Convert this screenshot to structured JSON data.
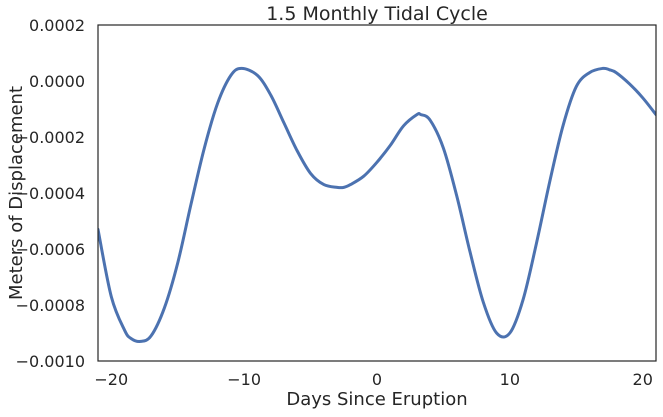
{
  "chart_data": {
    "type": "line",
    "title": "1.5 Monthly Tidal Cycle",
    "xlabel": "Days Since Eruption",
    "ylabel": "Meters of Displacement",
    "xlim": [
      -21,
      21
    ],
    "ylim": [
      -0.001,
      0.0002
    ],
    "x_ticks": [
      -20,
      -10,
      0,
      10,
      20
    ],
    "x_tick_labels": [
      "−20",
      "−10",
      "0",
      "10",
      "20"
    ],
    "y_ticks": [
      -0.001,
      -0.0008,
      -0.0006,
      -0.0004,
      -0.0002,
      0.0,
      0.0002
    ],
    "y_tick_labels": [
      "−0.0010",
      "−0.0008",
      "−0.0006",
      "−0.0004",
      "−0.0002",
      "0.0000",
      "0.0002"
    ],
    "grid": false,
    "line_color": "#4c72b0",
    "series": [
      {
        "x": [
          -21,
          -20,
          -19,
          -18.5,
          -17.8,
          -17,
          -16,
          -15,
          -14,
          -13,
          -12,
          -11,
          -10.2,
          -9,
          -8,
          -7,
          -6,
          -5,
          -4,
          -3,
          -2.5,
          -2,
          -1,
          0,
          1,
          2,
          3,
          3.3,
          4,
          5,
          6,
          7,
          8,
          9,
          10,
          11,
          12,
          13,
          14,
          15,
          16,
          17,
          17.5,
          18,
          19,
          20,
          21
        ],
        "y": [
          -0.00053,
          -0.00077,
          -0.00089,
          -0.00092,
          -0.00093,
          -0.00091,
          -0.00081,
          -0.00065,
          -0.00044,
          -0.00024,
          -8e-05,
          2e-05,
          4.5e-05,
          2e-05,
          -5e-05,
          -0.00015,
          -0.00025,
          -0.00033,
          -0.00037,
          -0.00038,
          -0.00038,
          -0.00037,
          -0.00034,
          -0.00029,
          -0.00023,
          -0.00016,
          -0.00012,
          -0.00012,
          -0.00014,
          -0.00024,
          -0.00041,
          -0.00061,
          -0.00079,
          -0.0009,
          -0.0009,
          -0.00078,
          -0.00058,
          -0.00036,
          -0.00016,
          -2e-05,
          3e-05,
          4.5e-05,
          4e-05,
          3e-05,
          -1e-05,
          -6e-05,
          -0.00012
        ]
      }
    ]
  }
}
